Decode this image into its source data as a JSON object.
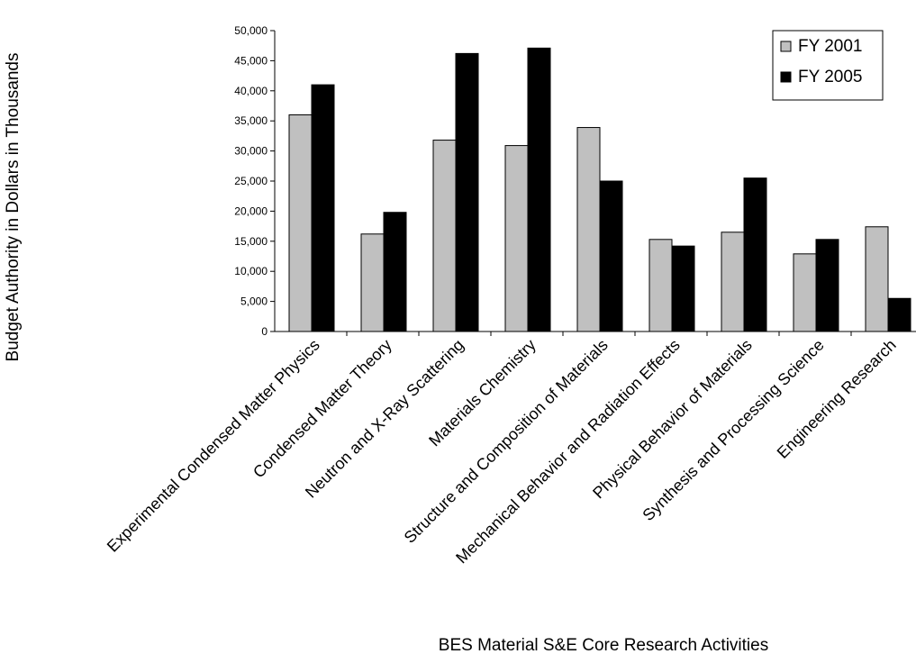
{
  "chart_data": {
    "type": "bar",
    "title": "",
    "xlabel": "BES Material S&E Core Research Activities",
    "ylabel": "Budget Authority in Dollars in Thousands",
    "ylim": [
      0,
      50000
    ],
    "yticks": [
      "0",
      "5,000",
      "10,000",
      "15,000",
      "20,000",
      "25,000",
      "30,000",
      "35,000",
      "40,000",
      "45,000",
      "50,000"
    ],
    "categories": [
      "Experimental Condensed Matter Physics",
      "Condensed Matter Theory",
      "Neutron and X-Ray Scattering",
      "Materials Chemistry",
      "Structure and Composition of Materials",
      "Mechanical Behavior and Radiation Effects",
      "Physical Behavior of Materials",
      "Synthesis and Processing Science",
      "Engineering Research"
    ],
    "series": [
      {
        "name": "FY 2001",
        "color": "#c0c0c0",
        "values": [
          36000,
          16200,
          31800,
          30900,
          33900,
          15300,
          16500,
          12900,
          17400
        ]
      },
      {
        "name": "FY 2005",
        "color": "#000000",
        "values": [
          41000,
          19800,
          46200,
          47100,
          25000,
          14200,
          25500,
          15300,
          5500
        ]
      }
    ],
    "grid": false,
    "legend_position": "top-right"
  }
}
